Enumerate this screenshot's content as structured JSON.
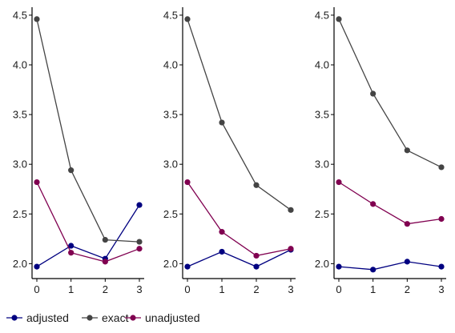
{
  "chart_data": [
    {
      "type": "line",
      "x": [
        0,
        1,
        2,
        3
      ],
      "ylim": [
        1.85,
        4.58
      ],
      "yticks": [
        2.0,
        2.5,
        3.0,
        3.5,
        4.0,
        4.5
      ],
      "ytick_labels": [
        "2.0",
        "2.5",
        "3.0",
        "3.5",
        "4.0",
        "4.5"
      ],
      "xtick_labels": [
        "0",
        "1",
        "2",
        "3"
      ],
      "grid": false,
      "series": [
        {
          "name": "adjusted",
          "color": "#000080",
          "values": [
            1.97,
            2.18,
            2.05,
            2.59
          ]
        },
        {
          "name": "exact",
          "color": "#444444",
          "values": [
            4.46,
            2.94,
            2.24,
            2.22
          ]
        },
        {
          "name": "unadjusted",
          "color": "#800050",
          "values": [
            2.82,
            2.11,
            2.02,
            2.15
          ]
        }
      ]
    },
    {
      "type": "line",
      "x": [
        0,
        1,
        2,
        3
      ],
      "ylim": [
        1.85,
        4.58
      ],
      "yticks": [
        2.0,
        2.5,
        3.0,
        3.5,
        4.0,
        4.5
      ],
      "ytick_labels": [
        "2.0",
        "2.5",
        "3.0",
        "3.5",
        "4.0",
        "4.5"
      ],
      "xtick_labels": [
        "0",
        "1",
        "2",
        "3"
      ],
      "grid": false,
      "series": [
        {
          "name": "adjusted",
          "color": "#000080",
          "values": [
            1.97,
            2.12,
            1.97,
            2.14
          ]
        },
        {
          "name": "exact",
          "color": "#444444",
          "values": [
            4.46,
            3.42,
            2.79,
            2.54
          ]
        },
        {
          "name": "unadjusted",
          "color": "#800050",
          "values": [
            2.82,
            2.32,
            2.08,
            2.15
          ]
        }
      ]
    },
    {
      "type": "line",
      "x": [
        0,
        1,
        2,
        3
      ],
      "ylim": [
        1.85,
        4.58
      ],
      "yticks": [
        2.0,
        2.5,
        3.0,
        3.5,
        4.0,
        4.5
      ],
      "ytick_labels": [
        "2.0",
        "2.5",
        "3.0",
        "3.5",
        "4.0",
        "4.5"
      ],
      "xtick_labels": [
        "0",
        "1",
        "2",
        "3"
      ],
      "grid": false,
      "series": [
        {
          "name": "adjusted",
          "color": "#000080",
          "values": [
            1.97,
            1.94,
            2.02,
            1.97
          ]
        },
        {
          "name": "exact",
          "color": "#444444",
          "values": [
            4.46,
            3.71,
            3.14,
            2.97
          ]
        },
        {
          "name": "unadjusted",
          "color": "#800050",
          "values": [
            2.82,
            2.6,
            2.4,
            2.45
          ]
        }
      ]
    }
  ],
  "legend": {
    "position": "bottom-left",
    "items": [
      {
        "label": "adjusted",
        "color": "#000080"
      },
      {
        "label": "exact",
        "color": "#444444"
      },
      {
        "label": "unadjusted",
        "color": "#800050"
      }
    ]
  }
}
